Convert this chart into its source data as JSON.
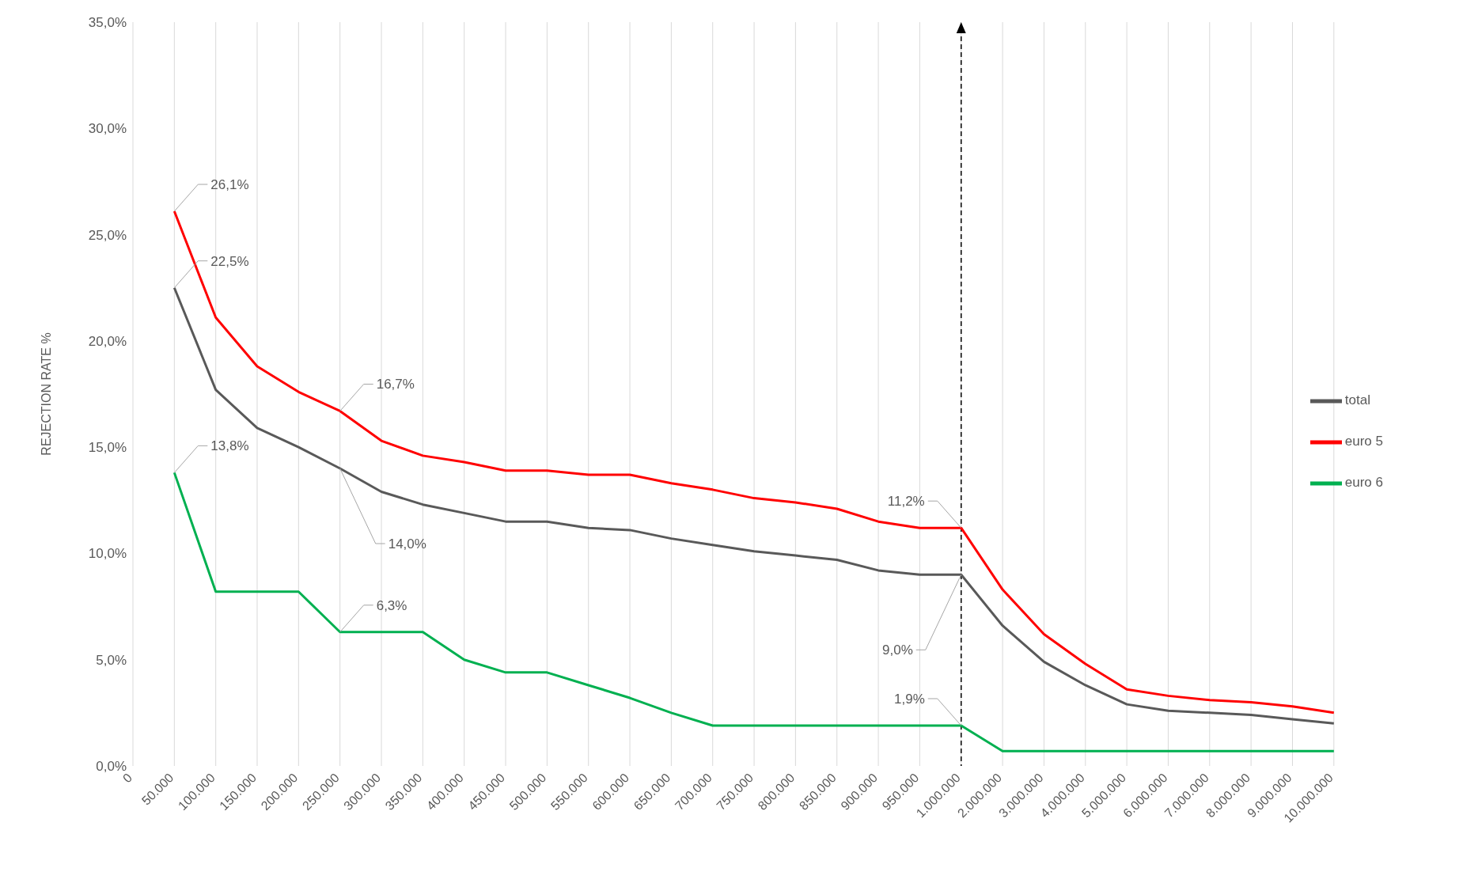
{
  "chart_data": {
    "type": "line",
    "ylabel": "REJECTION RATE  %",
    "categories": [
      "0",
      "50.000",
      "100.000",
      "150.000",
      "200.000",
      "250.000",
      "300.000",
      "350.000",
      "400.000",
      "450.000",
      "500.000",
      "550.000",
      "600.000",
      "650.000",
      "700.000",
      "750.000",
      "800.000",
      "850.000",
      "900.000",
      "950.000",
      "1.000.000",
      "2.000.000",
      "3.000.000",
      "4.000.000",
      "5.000.000",
      "6.000.000",
      "7.000.000",
      "8.000.000",
      "9.000.000",
      "10.000.000"
    ],
    "series": [
      {
        "name": "total",
        "color": "#595959",
        "values": [
          null,
          22.5,
          17.7,
          15.9,
          15.0,
          14.0,
          12.9,
          12.3,
          11.9,
          11.5,
          11.5,
          11.2,
          11.1,
          10.7,
          10.4,
          10.1,
          9.9,
          9.7,
          9.2,
          9.0,
          9.0,
          6.6,
          4.9,
          3.8,
          2.9,
          2.6,
          2.5,
          2.4,
          2.2,
          2.0
        ],
        "value_labels": [
          null,
          "22,5%",
          null,
          null,
          null,
          "14,0%",
          null,
          null,
          null,
          null,
          null,
          null,
          null,
          null,
          null,
          null,
          null,
          null,
          null,
          null,
          "9,0%",
          null,
          null,
          null,
          null,
          null,
          null,
          null,
          null,
          null
        ]
      },
      {
        "name": "euro 5",
        "color": "#ff0000",
        "values": [
          null,
          26.1,
          21.1,
          18.8,
          17.6,
          16.7,
          15.3,
          14.6,
          14.3,
          13.9,
          13.9,
          13.7,
          13.7,
          13.3,
          13.0,
          12.6,
          12.4,
          12.1,
          11.5,
          11.2,
          11.2,
          8.3,
          6.2,
          4.8,
          3.6,
          3.3,
          3.1,
          3.0,
          2.8,
          2.5
        ],
        "value_labels": [
          null,
          "26,1%",
          null,
          null,
          null,
          "16,7%",
          null,
          null,
          null,
          null,
          null,
          null,
          null,
          null,
          null,
          null,
          null,
          null,
          null,
          null,
          "11,2%",
          null,
          null,
          null,
          null,
          null,
          null,
          null,
          null,
          null
        ]
      },
      {
        "name": "euro 6",
        "color": "#00b050",
        "values": [
          null,
          13.8,
          8.2,
          8.2,
          8.2,
          6.3,
          6.3,
          6.3,
          5.0,
          4.4,
          4.4,
          3.8,
          3.2,
          2.5,
          1.9,
          1.9,
          1.9,
          1.9,
          1.9,
          1.9,
          1.9,
          0.7,
          0.7,
          0.7,
          0.7,
          0.7,
          0.7,
          0.7,
          0.7,
          0.7
        ],
        "value_labels": [
          null,
          "13,8%",
          null,
          null,
          null,
          "6,3%",
          null,
          null,
          null,
          null,
          null,
          null,
          null,
          null,
          null,
          null,
          null,
          null,
          null,
          null,
          "1,9%",
          null,
          null,
          null,
          null,
          null,
          null,
          null,
          null,
          null
        ]
      }
    ],
    "ylim": [
      0,
      35
    ],
    "yticks": [
      {
        "value": 0,
        "label": "0,0%"
      },
      {
        "value": 5,
        "label": "5,0%"
      },
      {
        "value": 10,
        "label": "10,0%"
      },
      {
        "value": 15,
        "label": "15,0%"
      },
      {
        "value": 20,
        "label": "20,0%"
      },
      {
        "value": 25,
        "label": "25,0%"
      },
      {
        "value": 30,
        "label": "30,0%"
      },
      {
        "value": 35,
        "label": "35,0%"
      }
    ],
    "ref_lines": [
      {
        "axis": "x",
        "value": "1.000.000",
        "color": "#000000",
        "line_style": "dashed"
      }
    ],
    "grid": "x",
    "legend": "right",
    "marker": "none",
    "line_style": "solid"
  }
}
